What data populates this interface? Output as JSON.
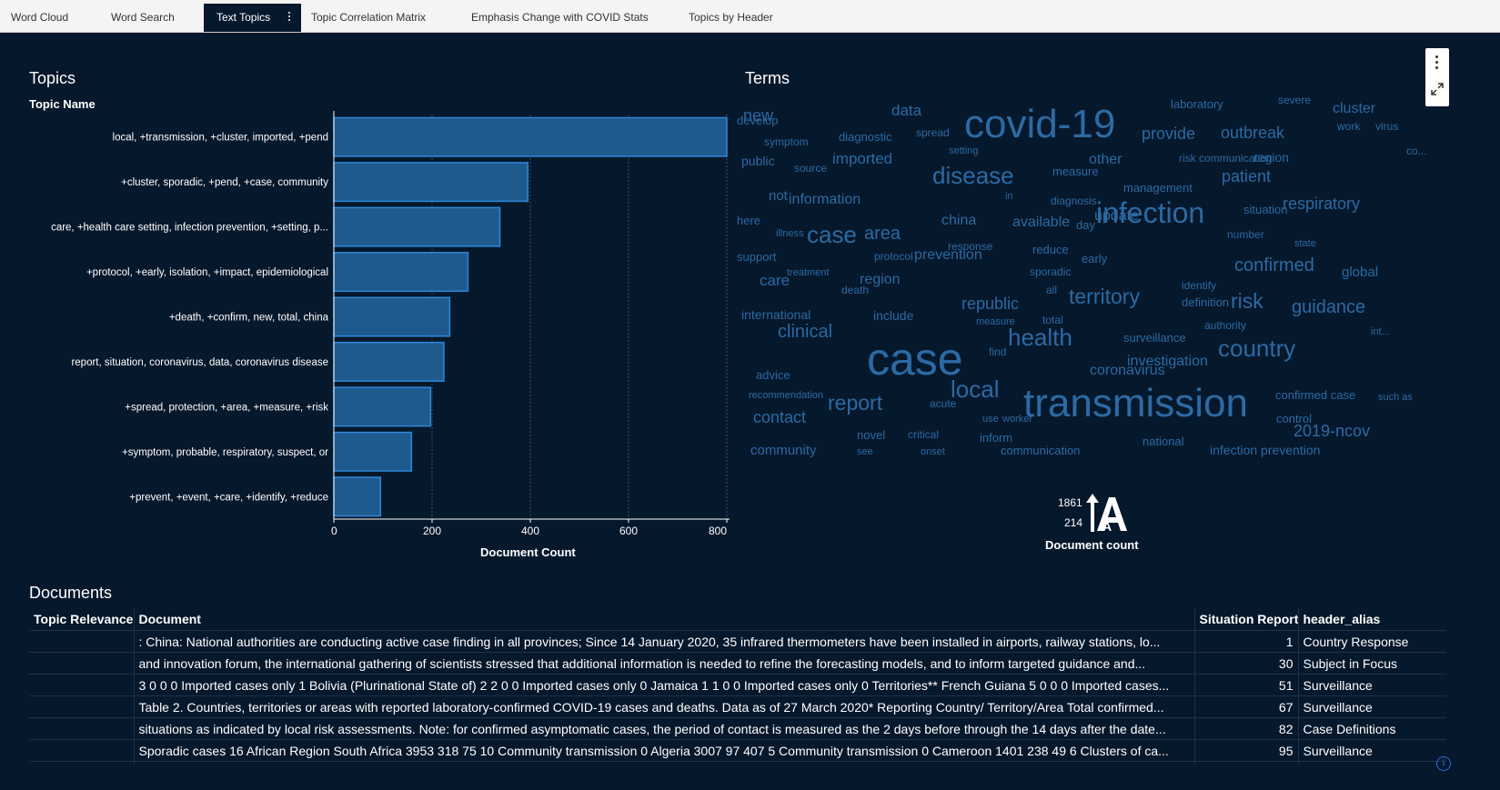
{
  "tabs": [
    {
      "label": "Word Cloud",
      "active": false
    },
    {
      "label": "Word Search",
      "active": false
    },
    {
      "label": "Text Topics",
      "active": true
    },
    {
      "label": "Topic Correlation Matrix",
      "active": false
    },
    {
      "label": "Emphasis Change with COVID Stats",
      "active": false
    },
    {
      "label": "Topics by Header",
      "active": false
    }
  ],
  "topics": {
    "title": "Topics",
    "category_axis_title": "Topic Name",
    "value_axis_title": "Document Count"
  },
  "chart_data": {
    "type": "bar",
    "orientation": "horizontal",
    "categories": [
      "local, +transmission, +cluster, imported, +pend",
      "+cluster, sporadic, +pend, +case, community",
      "care, +health care setting, infection prevention, +setting, p...",
      "+protocol, +early, isolation, +impact, epidemiological",
      "+death, +confirm, new, total, china",
      "report, situation, coronavirus, data, coronavirus disease",
      "+spread, protection, +area, +measure, +risk",
      "+symptom, probable, respiratory, suspect, or",
      "+prevent, +event, +care, +identify, +reduce"
    ],
    "values": [
      800,
      395,
      338,
      273,
      236,
      224,
      197,
      158,
      95
    ],
    "xlabel": "Document Count",
    "ylabel": "Topic Name",
    "xlim": [
      0,
      800
    ],
    "xticks": [
      0,
      200,
      400,
      600,
      800
    ],
    "grid": true,
    "bar_color": "#1f5a8f",
    "bar_border": "#2f86d6"
  },
  "terms": {
    "title": "Terms",
    "color": "#2c6aa3",
    "words": [
      {
        "text": "covid-19",
        "size": 44
      },
      {
        "text": "case",
        "size": 50
      },
      {
        "text": "transmission",
        "size": 44
      },
      {
        "text": "infection",
        "size": 32
      },
      {
        "text": "disease",
        "size": 26
      },
      {
        "text": "health",
        "size": 26
      },
      {
        "text": "country",
        "size": 26
      },
      {
        "text": "case",
        "size": 26
      },
      {
        "text": "local",
        "size": 26
      },
      {
        "text": "report",
        "size": 23
      },
      {
        "text": "territory",
        "size": 23
      },
      {
        "text": "risk",
        "size": 23
      },
      {
        "text": "confirmed",
        "size": 20
      },
      {
        "text": "guidance",
        "size": 20
      },
      {
        "text": "area",
        "size": 20
      },
      {
        "text": "clinical",
        "size": 20
      },
      {
        "text": "outbreak",
        "size": 18
      },
      {
        "text": "provide",
        "size": 18
      },
      {
        "text": "republic",
        "size": 18
      },
      {
        "text": "patient",
        "size": 18
      },
      {
        "text": "respiratory",
        "size": 18
      },
      {
        "text": "contact",
        "size": 18
      },
      {
        "text": "2019-ncov",
        "size": 18
      },
      {
        "text": "new",
        "size": 18
      },
      {
        "text": "data",
        "size": 17
      },
      {
        "text": "imported",
        "size": 17
      },
      {
        "text": "information",
        "size": 16
      },
      {
        "text": "prevention",
        "size": 16
      },
      {
        "text": "available",
        "size": 16
      },
      {
        "text": "update",
        "size": 16
      },
      {
        "text": "investigation",
        "size": 16
      },
      {
        "text": "coronavirus",
        "size": 16
      },
      {
        "text": "care",
        "size": 17
      },
      {
        "text": "region",
        "size": 16
      },
      {
        "text": "china",
        "size": 16
      },
      {
        "text": "cluster",
        "size": 16
      },
      {
        "text": "other",
        "size": 16
      },
      {
        "text": "global",
        "size": 15
      },
      {
        "text": "community",
        "size": 15
      },
      {
        "text": "not",
        "size": 15
      },
      {
        "text": "international",
        "size": 14
      },
      {
        "text": "include",
        "size": 14
      },
      {
        "text": "public",
        "size": 14
      },
      {
        "text": "develop",
        "size": 13
      },
      {
        "text": "diagnostic",
        "size": 13
      },
      {
        "text": "laboratory",
        "size": 13
      },
      {
        "text": "management",
        "size": 13
      },
      {
        "text": "measure",
        "size": 13
      },
      {
        "text": "day",
        "size": 13
      },
      {
        "text": "region",
        "size": 14
      },
      {
        "text": "situation",
        "size": 13
      },
      {
        "text": "surveillance",
        "size": 13
      },
      {
        "text": "communication",
        "size": 13
      },
      {
        "text": "infection prevention",
        "size": 14
      },
      {
        "text": "national",
        "size": 13
      },
      {
        "text": "confirmed case",
        "size": 13
      },
      {
        "text": "control",
        "size": 13
      },
      {
        "text": "symptom",
        "size": 12
      },
      {
        "text": "source",
        "size": 12
      },
      {
        "text": "spread",
        "size": 12
      },
      {
        "text": "setting",
        "size": 11
      },
      {
        "text": "severe",
        "size": 12
      },
      {
        "text": "work",
        "size": 12
      },
      {
        "text": "virus",
        "size": 12
      },
      {
        "text": "risk communication",
        "size": 12
      },
      {
        "text": "co...",
        "size": 12
      },
      {
        "text": "in",
        "size": 11
      },
      {
        "text": "diagnosis",
        "size": 12
      },
      {
        "text": "here",
        "size": 13
      },
      {
        "text": "illness",
        "size": 11
      },
      {
        "text": "response",
        "size": 12
      },
      {
        "text": "reduce",
        "size": 13
      },
      {
        "text": "early",
        "size": 13
      },
      {
        "text": "number",
        "size": 12
      },
      {
        "text": "state",
        "size": 11
      },
      {
        "text": "support",
        "size": 13
      },
      {
        "text": "protocol",
        "size": 12
      },
      {
        "text": "treatment",
        "size": 11
      },
      {
        "text": "sporadic",
        "size": 12
      },
      {
        "text": "death",
        "size": 12
      },
      {
        "text": "identify",
        "size": 12
      },
      {
        "text": "definition",
        "size": 13
      },
      {
        "text": "all",
        "size": 12
      },
      {
        "text": "measure",
        "size": 11
      },
      {
        "text": "total",
        "size": 12
      },
      {
        "text": "authority",
        "size": 12
      },
      {
        "text": "int...",
        "size": 11
      },
      {
        "text": "find",
        "size": 12
      },
      {
        "text": "advice",
        "size": 13
      },
      {
        "text": "recommendation",
        "size": 11
      },
      {
        "text": "acute",
        "size": 12
      },
      {
        "text": "use",
        "size": 11
      },
      {
        "text": "worker",
        "size": 11
      },
      {
        "text": "such as",
        "size": 11
      },
      {
        "text": "novel",
        "size": 13
      },
      {
        "text": "critical",
        "size": 12
      },
      {
        "text": "inform",
        "size": 13
      },
      {
        "text": "see",
        "size": 11
      },
      {
        "text": "onset",
        "size": 11
      }
    ]
  },
  "legend": {
    "max": "1861",
    "min": "214",
    "title": "Document count"
  },
  "documents": {
    "title": "Documents",
    "columns": [
      "Topic Relevance",
      "Document",
      "Situation Report",
      "header_alias"
    ],
    "rows": [
      {
        "relevance": "",
        "document": ": China: National authorities are conducting active case finding in all provinces; Since 14 January 2020, 35 infrared thermometers have been installed in airports, railway stations, lo...",
        "report": "1",
        "alias": "Country Response"
      },
      {
        "relevance": "",
        "document": "and innovation forum, the international gathering of scientists stressed that additional information is needed to refine the forecasting models, and to inform targeted guidance and...",
        "report": "30",
        "alias": "Subject in Focus"
      },
      {
        "relevance": "",
        "document": "3 0 0 0 Imported cases only 1 Bolivia (Plurinational State of) 2 2 0 0 Imported cases only 0 Jamaica 1 1 0 0 Imported cases only 0 Territories** French Guiana 5 0 0 0 Imported cases...",
        "report": "51",
        "alias": "Surveillance"
      },
      {
        "relevance": "",
        "document": "Table 2. Countries, territories or areas with reported laboratory-confirmed COVID-19 cases and deaths. Data as of 27 March 2020* Reporting Country/ Territory/Area Total confirmed...",
        "report": "67",
        "alias": "Surveillance"
      },
      {
        "relevance": "",
        "document": "situations as indicated by local risk assessments. Note: for confirmed asymptomatic cases, the period of contact is measured as the 2 days before through the 14 days after the date...",
        "report": "82",
        "alias": "Case Definitions"
      },
      {
        "relevance": "",
        "document": "Sporadic cases 16 African Region South Africa 3953 318 75 10 Community transmission 0 Algeria 3007 97 407 5 Community transmission 0 Cameroon 1401 238 49 6 Clusters of ca...",
        "report": "95",
        "alias": "Surveillance"
      }
    ]
  }
}
